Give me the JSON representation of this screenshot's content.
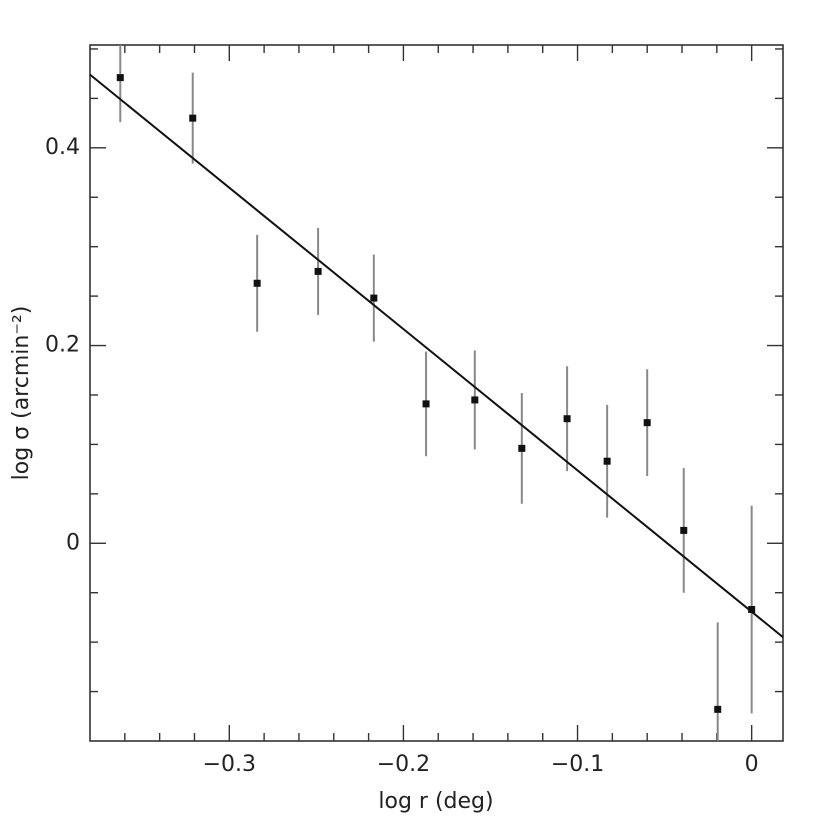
{
  "chart_data": {
    "type": "scatter",
    "x_label": "log r (deg)",
    "y_label": "log σ  (arcmin⁻²)",
    "xlim": [
      -0.38,
      0.018
    ],
    "ylim": [
      -0.2,
      0.504
    ],
    "xticks": [
      {
        "value": -0.3,
        "label": "−0.3"
      },
      {
        "value": -0.2,
        "label": "−0.2"
      },
      {
        "value": -0.1,
        "label": "−0.1"
      },
      0
    ],
    "xminorticks": [
      -0.36,
      -0.34,
      -0.32,
      -0.28,
      -0.26,
      -0.24,
      -0.22,
      -0.18,
      -0.16,
      -0.14,
      -0.12,
      -0.08,
      -0.06,
      -0.04,
      -0.02
    ],
    "yticks": [
      0,
      0.2,
      0.4
    ],
    "yminorticks": [
      -0.15,
      -0.1,
      -0.05,
      0.05,
      0.1,
      0.15,
      0.25,
      0.3,
      0.35,
      0.45,
      0.5
    ],
    "color": "#111",
    "x": [
      -0.3626,
      -0.321,
      -0.284,
      -0.249,
      -0.217,
      -0.187,
      -0.159,
      -0.132,
      -0.106,
      -0.083,
      -0.06,
      -0.039,
      -0.0195,
      0
    ],
    "values": [
      0.471,
      0.43,
      0.263,
      0.275,
      0.248,
      0.141,
      0.145,
      0.096,
      0.126,
      0.083,
      0.122,
      0.013,
      -0.168,
      -0.067
    ],
    "errors": [
      0.045,
      0.046,
      0.049,
      0.044,
      0.044,
      0.053,
      0.05,
      0.056,
      0.053,
      0.057,
      0.054,
      0.063,
      0.088,
      0.105
    ],
    "fit": {
      "x": [
        -0.38,
        0.018
      ],
      "y": [
        0.474,
        -0.095
      ]
    }
  }
}
